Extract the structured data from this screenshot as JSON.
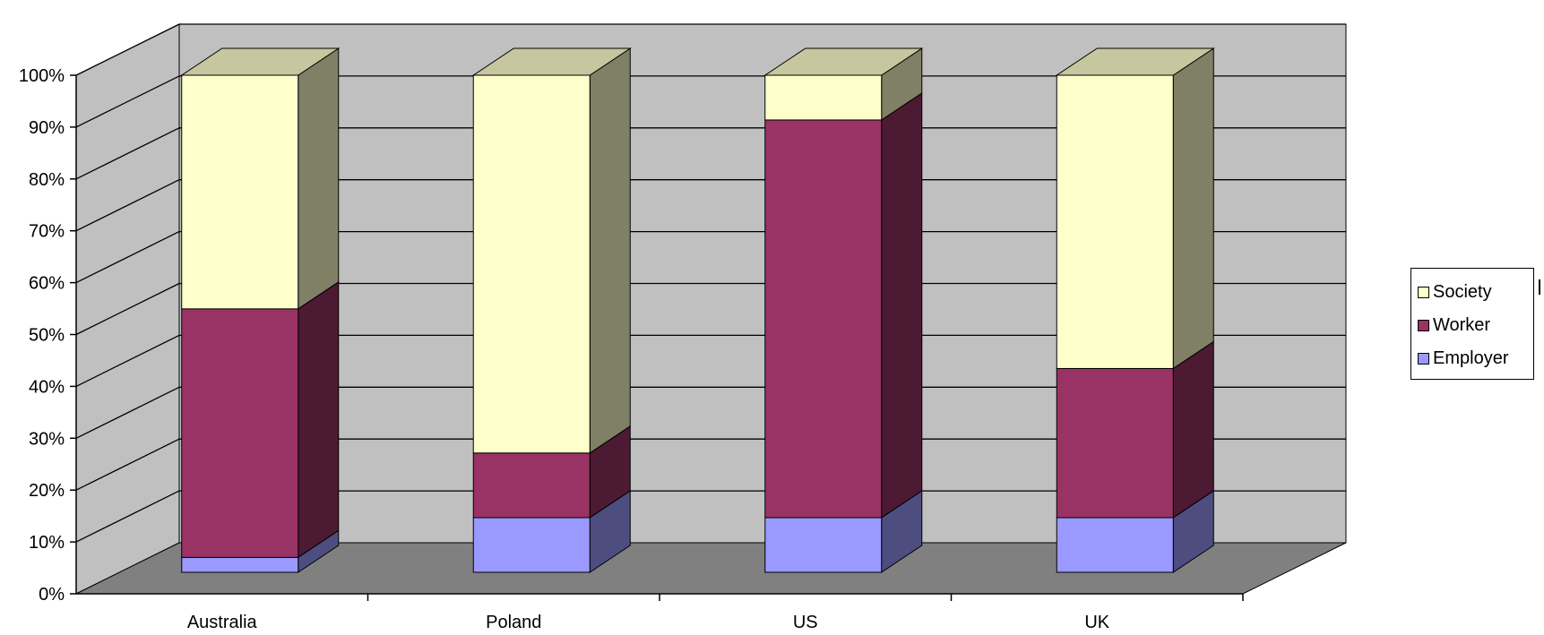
{
  "chart_data": {
    "type": "bar",
    "stacked": true,
    "percent_stacked": true,
    "three_d": true,
    "categories": [
      "Australia",
      "Poland",
      "US",
      "UK"
    ],
    "series": [
      {
        "name": "Employer",
        "values": [
          3,
          11,
          11,
          11
        ]
      },
      {
        "name": "Worker",
        "values": [
          50,
          13,
          80,
          30
        ]
      },
      {
        "name": "Society",
        "values": [
          47,
          76,
          9,
          59
        ]
      }
    ],
    "y_ticks": [
      "0%",
      "10%",
      "20%",
      "30%",
      "40%",
      "50%",
      "60%",
      "70%",
      "80%",
      "90%",
      "100%"
    ],
    "ylim": [
      0,
      100
    ],
    "grid": true,
    "legend_position": "right",
    "legend_order": [
      "Society",
      "Worker",
      "Employer"
    ],
    "colors": {
      "Employer": "#9999ff",
      "Worker": "#993366",
      "Society": "#ffffcc",
      "wall": "#c0c0c0",
      "floor": "#808080"
    }
  }
}
